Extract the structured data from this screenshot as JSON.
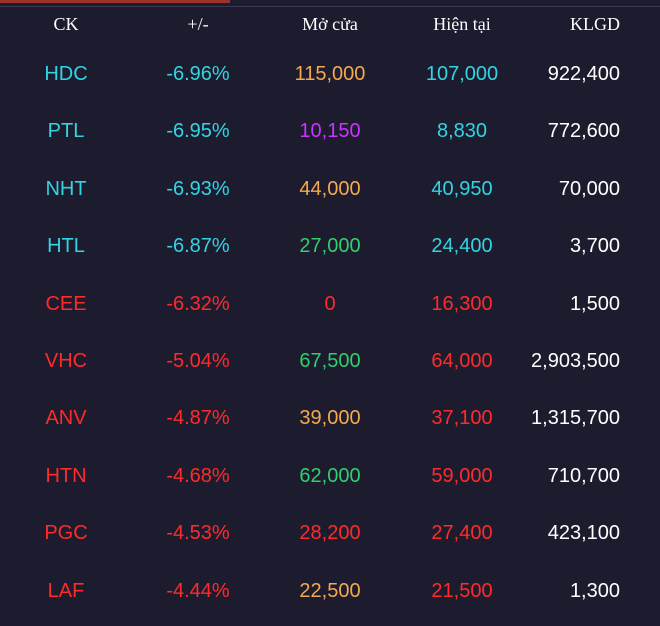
{
  "header": {
    "ck": "CK",
    "change": "+/-",
    "open": "Mở cửa",
    "current": "Hiện tại",
    "volume": "KLGD"
  },
  "colors": {
    "cyan": "#31d4e2",
    "red": "#ff2a2a",
    "orange": "#f5a94e",
    "purple": "#cc33ff",
    "green": "#2fcf6c",
    "white": "#ffffff"
  },
  "rows": [
    {
      "ck": "HDC",
      "change": "-6.96%",
      "open": "115,000",
      "current": "107,000",
      "volume": "922,400",
      "ck_color": "cyan",
      "open_color": "orange",
      "current_color": "cyan"
    },
    {
      "ck": "PTL",
      "change": "-6.95%",
      "open": "10,150",
      "current": "8,830",
      "volume": "772,600",
      "ck_color": "cyan",
      "open_color": "purple",
      "current_color": "cyan"
    },
    {
      "ck": "NHT",
      "change": "-6.93%",
      "open": "44,000",
      "current": "40,950",
      "volume": "70,000",
      "ck_color": "cyan",
      "open_color": "orange",
      "current_color": "cyan"
    },
    {
      "ck": "HTL",
      "change": "-6.87%",
      "open": "27,000",
      "current": "24,400",
      "volume": "3,700",
      "ck_color": "cyan",
      "open_color": "green",
      "current_color": "cyan"
    },
    {
      "ck": "CEE",
      "change": "-6.32%",
      "open": "0",
      "current": "16,300",
      "volume": "1,500",
      "ck_color": "red",
      "open_color": "red",
      "current_color": "red"
    },
    {
      "ck": "VHC",
      "change": "-5.04%",
      "open": "67,500",
      "current": "64,000",
      "volume": "2,903,500",
      "ck_color": "red",
      "open_color": "green",
      "current_color": "red"
    },
    {
      "ck": "ANV",
      "change": "-4.87%",
      "open": "39,000",
      "current": "37,100",
      "volume": "1,315,700",
      "ck_color": "red",
      "open_color": "orange",
      "current_color": "red"
    },
    {
      "ck": "HTN",
      "change": "-4.68%",
      "open": "62,000",
      "current": "59,000",
      "volume": "710,700",
      "ck_color": "red",
      "open_color": "green",
      "current_color": "red"
    },
    {
      "ck": "PGC",
      "change": "-4.53%",
      "open": "28,200",
      "current": "27,400",
      "volume": "423,100",
      "ck_color": "red",
      "open_color": "red",
      "current_color": "red"
    },
    {
      "ck": "LAF",
      "change": "-4.44%",
      "open": "22,500",
      "current": "21,500",
      "volume": "1,300",
      "ck_color": "red",
      "open_color": "orange",
      "current_color": "red"
    }
  ]
}
